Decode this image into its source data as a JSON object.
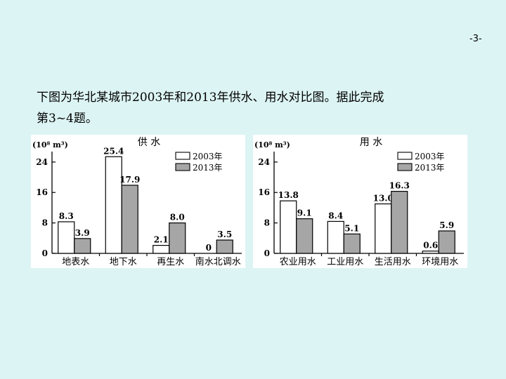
{
  "page_number": "-3-",
  "question": {
    "line1": "下图为华北某城市2003年和2013年供水、用水对比图。据此完成",
    "line2": "第3~4题。"
  },
  "colors": {
    "background": "#ddf4f4",
    "bar_2003": "#ffffff",
    "bar_2013": "#a6a6a6",
    "stroke": "#000000"
  },
  "chart_data": [
    {
      "type": "bar",
      "title": "供 水",
      "unit_label": "(10⁸ m³)",
      "categories": [
        "地表水",
        "地下水",
        "再生水",
        "南水北调水"
      ],
      "series": [
        {
          "name": "2003年",
          "values": [
            8.3,
            25.4,
            2.1,
            0
          ],
          "labels": [
            "8.3",
            "25.4",
            "2.1",
            "0"
          ]
        },
        {
          "name": "2013年",
          "values": [
            3.9,
            17.9,
            8.0,
            3.5
          ],
          "labels": [
            "3.9",
            "17.9",
            "8.0",
            "3.5"
          ]
        }
      ],
      "yticks": [
        "0",
        "8",
        "16",
        "24"
      ],
      "ylim": [
        0,
        26
      ],
      "legend_position": "top-right",
      "grid": false
    },
    {
      "type": "bar",
      "title": "用 水",
      "unit_label": "(10⁸ m³)",
      "categories": [
        "农业用水",
        "工业用水",
        "生活用水",
        "环境用水"
      ],
      "series": [
        {
          "name": "2003年",
          "values": [
            13.8,
            8.4,
            13.0,
            0.6
          ],
          "labels": [
            "13.8",
            "8.4",
            "13.0",
            "0.6"
          ]
        },
        {
          "name": "2013年",
          "values": [
            9.1,
            5.1,
            16.3,
            5.9
          ],
          "labels": [
            "9.1",
            "5.1",
            "16.3",
            "5.9"
          ]
        }
      ],
      "yticks": [
        "0",
        "8",
        "16",
        "24"
      ],
      "ylim": [
        0,
        26
      ],
      "legend_position": "top-right",
      "grid": false
    }
  ]
}
